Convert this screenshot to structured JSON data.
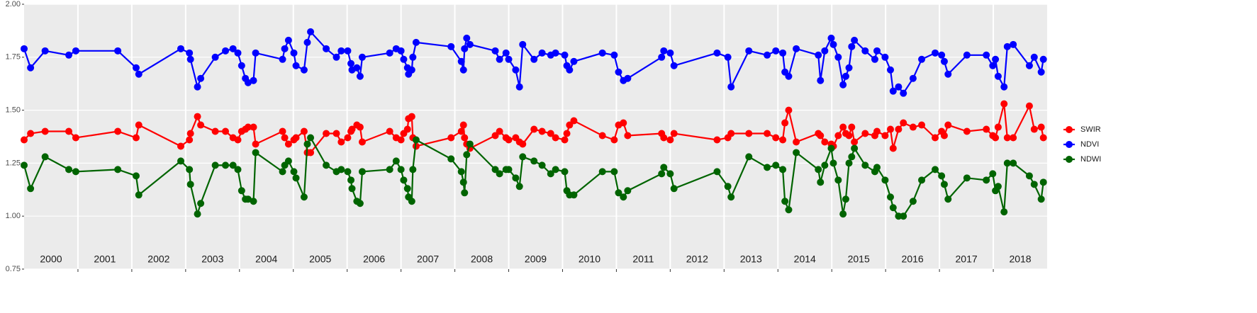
{
  "chart_data": {
    "type": "line",
    "legend": "right",
    "grid": true,
    "categories": [
      "2000",
      "2001",
      "2002",
      "2003",
      "2004",
      "2005",
      "2006",
      "2007",
      "2008",
      "2009",
      "2010",
      "2011",
      "2012",
      "2013",
      "2014",
      "2015",
      "2016",
      "2017",
      "2018"
    ],
    "xlim": [
      2000,
      2019
    ],
    "xticks": [
      2001,
      2002,
      2003,
      2004,
      2005,
      2006,
      2007,
      2008,
      2009,
      2010,
      2011,
      2012,
      2013,
      2014,
      2015,
      2016,
      2017,
      2018
    ],
    "ylim": [
      0.75,
      2.0
    ],
    "yticks": [
      {
        "value": 0.75,
        "label": "0.75"
      },
      {
        "value": 1.0,
        "label": "1.00"
      },
      {
        "value": 1.25,
        "label": "1.25"
      },
      {
        "value": 1.5,
        "label": "1.50"
      },
      {
        "value": 1.75,
        "label": "1.75"
      },
      {
        "value": 2.0,
        "label": "2.00"
      }
    ],
    "x": [
      2000.0,
      2000.12,
      2000.39,
      2000.83,
      2000.96,
      2001.74,
      2002.08,
      2002.13,
      2002.91,
      2003.07,
      2003.09,
      2003.22,
      2003.28,
      2003.55,
      2003.74,
      2003.88,
      2003.97,
      2004.04,
      2004.11,
      2004.16,
      2004.26,
      2004.3,
      2004.8,
      2004.84,
      2004.91,
      2005.01,
      2005.05,
      2005.2,
      2005.26,
      2005.32,
      2005.61,
      2005.8,
      2005.89,
      2006.01,
      2006.07,
      2006.09,
      2006.18,
      2006.24,
      2006.28,
      2006.79,
      2006.91,
      2007.0,
      2007.05,
      2007.12,
      2007.14,
      2007.2,
      2007.22,
      2007.28,
      2007.93,
      2008.12,
      2008.16,
      2008.18,
      2008.22,
      2008.28,
      2008.75,
      2008.83,
      2008.95,
      2009.0,
      2009.13,
      2009.2,
      2009.26,
      2009.47,
      2009.62,
      2009.78,
      2009.87,
      2010.04,
      2010.08,
      2010.13,
      2010.21,
      2010.74,
      2010.96,
      2011.04,
      2011.13,
      2011.21,
      2011.84,
      2011.88,
      2012.0,
      2012.07,
      2012.87,
      2013.07,
      2013.13,
      2013.46,
      2013.8,
      2013.96,
      2014.09,
      2014.13,
      2014.2,
      2014.34,
      2014.75,
      2014.79,
      2014.87,
      2014.99,
      2015.03,
      2015.12,
      2015.21,
      2015.26,
      2015.32,
      2015.37,
      2015.42,
      2015.62,
      2015.8,
      2015.84,
      2015.99,
      2016.09,
      2016.14,
      2016.24,
      2016.33,
      2016.51,
      2016.67,
      2016.92,
      2017.04,
      2017.09,
      2017.16,
      2017.51,
      2017.87,
      2017.99,
      2018.04,
      2018.09,
      2018.2,
      2018.26,
      2018.37,
      2018.67,
      2018.76,
      2018.89,
      2018.93
    ],
    "series": [
      {
        "name": "SWIR",
        "color": "#ff0000",
        "values": [
          1.36,
          1.39,
          1.4,
          1.4,
          1.37,
          1.4,
          1.37,
          1.43,
          1.33,
          1.36,
          1.39,
          1.47,
          1.43,
          1.4,
          1.4,
          1.37,
          1.36,
          1.4,
          1.41,
          1.42,
          1.42,
          1.34,
          1.4,
          1.37,
          1.34,
          1.36,
          1.37,
          1.4,
          1.3,
          1.3,
          1.39,
          1.39,
          1.35,
          1.37,
          1.4,
          1.41,
          1.43,
          1.42,
          1.35,
          1.4,
          1.37,
          1.36,
          1.39,
          1.41,
          1.46,
          1.47,
          1.37,
          1.33,
          1.37,
          1.4,
          1.43,
          1.37,
          1.34,
          1.32,
          1.38,
          1.4,
          1.37,
          1.36,
          1.37,
          1.35,
          1.34,
          1.41,
          1.4,
          1.39,
          1.37,
          1.36,
          1.39,
          1.43,
          1.45,
          1.38,
          1.36,
          1.43,
          1.44,
          1.38,
          1.39,
          1.37,
          1.36,
          1.39,
          1.36,
          1.37,
          1.39,
          1.39,
          1.39,
          1.37,
          1.36,
          1.44,
          1.5,
          1.35,
          1.39,
          1.38,
          1.35,
          1.34,
          1.33,
          1.38,
          1.42,
          1.39,
          1.38,
          1.42,
          1.35,
          1.39,
          1.38,
          1.4,
          1.38,
          1.41,
          1.32,
          1.41,
          1.44,
          1.42,
          1.43,
          1.37,
          1.4,
          1.38,
          1.43,
          1.4,
          1.41,
          1.38,
          1.37,
          1.42,
          1.53,
          1.37,
          1.37,
          1.52,
          1.41,
          1.42,
          1.37
        ]
      },
      {
        "name": "NDVI",
        "color": "#0000ff",
        "values": [
          1.79,
          1.7,
          1.78,
          1.76,
          1.78,
          1.78,
          1.7,
          1.67,
          1.79,
          1.77,
          1.74,
          1.61,
          1.65,
          1.75,
          1.78,
          1.79,
          1.77,
          1.71,
          1.65,
          1.63,
          1.64,
          1.77,
          1.74,
          1.79,
          1.83,
          1.77,
          1.71,
          1.69,
          1.82,
          1.87,
          1.79,
          1.75,
          1.78,
          1.78,
          1.72,
          1.69,
          1.7,
          1.66,
          1.75,
          1.77,
          1.79,
          1.78,
          1.74,
          1.7,
          1.67,
          1.69,
          1.75,
          1.82,
          1.8,
          1.73,
          1.69,
          1.79,
          1.84,
          1.81,
          1.78,
          1.74,
          1.77,
          1.74,
          1.69,
          1.61,
          1.81,
          1.74,
          1.77,
          1.76,
          1.77,
          1.76,
          1.71,
          1.69,
          1.73,
          1.77,
          1.76,
          1.68,
          1.64,
          1.65,
          1.75,
          1.78,
          1.77,
          1.71,
          1.77,
          1.75,
          1.61,
          1.78,
          1.76,
          1.78,
          1.77,
          1.68,
          1.66,
          1.79,
          1.76,
          1.64,
          1.78,
          1.84,
          1.81,
          1.75,
          1.62,
          1.66,
          1.7,
          1.8,
          1.83,
          1.78,
          1.74,
          1.78,
          1.75,
          1.69,
          1.59,
          1.61,
          1.58,
          1.65,
          1.74,
          1.77,
          1.76,
          1.73,
          1.67,
          1.76,
          1.76,
          1.71,
          1.74,
          1.66,
          1.61,
          1.8,
          1.81,
          1.71,
          1.75,
          1.68,
          1.74
        ]
      },
      {
        "name": "NDWI",
        "color": "#006400",
        "values": [
          1.24,
          1.13,
          1.28,
          1.22,
          1.21,
          1.22,
          1.19,
          1.1,
          1.26,
          1.22,
          1.15,
          1.01,
          1.06,
          1.24,
          1.24,
          1.24,
          1.22,
          1.12,
          1.08,
          1.08,
          1.07,
          1.3,
          1.21,
          1.24,
          1.26,
          1.21,
          1.18,
          1.09,
          1.34,
          1.37,
          1.24,
          1.21,
          1.22,
          1.21,
          1.17,
          1.13,
          1.07,
          1.06,
          1.21,
          1.22,
          1.26,
          1.22,
          1.17,
          1.13,
          1.09,
          1.07,
          1.22,
          1.36,
          1.27,
          1.21,
          1.16,
          1.11,
          1.29,
          1.34,
          1.22,
          1.2,
          1.22,
          1.22,
          1.18,
          1.14,
          1.28,
          1.26,
          1.24,
          1.2,
          1.22,
          1.21,
          1.12,
          1.1,
          1.1,
          1.21,
          1.21,
          1.11,
          1.09,
          1.12,
          1.2,
          1.23,
          1.2,
          1.13,
          1.21,
          1.14,
          1.09,
          1.28,
          1.23,
          1.24,
          1.22,
          1.07,
          1.03,
          1.3,
          1.22,
          1.16,
          1.24,
          1.32,
          1.25,
          1.17,
          1.01,
          1.08,
          1.25,
          1.28,
          1.32,
          1.24,
          1.21,
          1.23,
          1.17,
          1.09,
          1.04,
          1.0,
          1.0,
          1.07,
          1.17,
          1.22,
          1.19,
          1.15,
          1.08,
          1.18,
          1.17,
          1.2,
          1.12,
          1.14,
          1.02,
          1.25,
          1.25,
          1.19,
          1.15,
          1.08,
          1.16
        ]
      }
    ]
  }
}
